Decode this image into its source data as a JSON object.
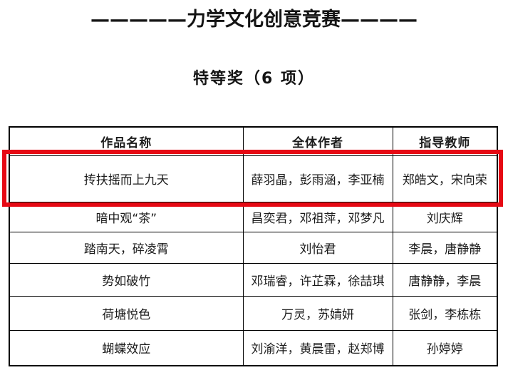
{
  "title": "—————力学文化创意竞赛————",
  "section": {
    "heading": "特等奖（6 项）"
  },
  "table": {
    "headers": {
      "work": "作品名称",
      "authors": "全体作者",
      "teachers": "指导教师"
    },
    "rows": [
      {
        "work": "抟扶摇而上九天",
        "authors": "薛羽晶，彭雨涵，李亚楠",
        "teachers": "郑皓文，宋向荣"
      },
      {
        "work": "暗中观“茶”",
        "authors": "昌奕君，邓祖萍，邓梦凡",
        "teachers": "刘庆辉"
      },
      {
        "work": "踏南天，碎凌霄",
        "authors": "刘怡君",
        "teachers": "李晨，唐静静"
      },
      {
        "work": "势如破竹",
        "authors": "邓瑞睿，许芷霖，徐喆琪",
        "teachers": "唐静静，李晨"
      },
      {
        "work": "荷塘悦色",
        "authors": "万灵，苏婧妍",
        "teachers": "张剑，李栋栋"
      },
      {
        "work": "蝴蝶效应",
        "authors": "刘渝洋，黄晨雷，赵郑博",
        "teachers": "孙婷婷"
      }
    ]
  },
  "annotation": {
    "highlighted_row_index": 0,
    "highlight_color": "#e60914"
  }
}
